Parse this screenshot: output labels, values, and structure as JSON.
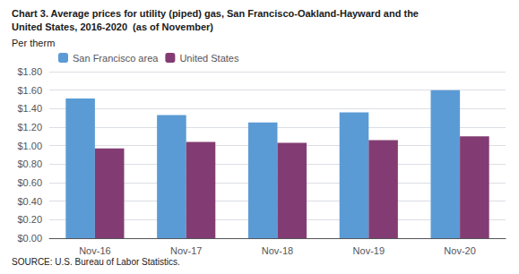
{
  "chart_data": {
    "type": "bar",
    "title": "Chart 3. Average prices for utility (piped) gas, San Francisco-Oakland-Hayward and the",
    "subtitle": "United States, 2016-2020  (as of November)",
    "y_label": "Per therm",
    "annotations": [
      "SOURCE: U.S. Bureau of Labor Statistics."
    ],
    "categories": [
      "Nov-16",
      "Nov-17",
      "Nov-18",
      "Nov-19",
      "Nov-20"
    ],
    "series": [
      {
        "name": "San Francisco area",
        "color": "#5B9BD5",
        "values": [
          1.51,
          1.33,
          1.25,
          1.36,
          1.6
        ]
      },
      {
        "name": "United States",
        "color": "#833C73",
        "values": [
          0.97,
          1.04,
          1.03,
          1.06,
          1.1
        ]
      }
    ],
    "ylim": [
      0.0,
      1.8
    ],
    "yticks": [
      {
        "value": 0.0,
        "label": "$0.00"
      },
      {
        "value": 0.2,
        "label": "$0.20"
      },
      {
        "value": 0.4,
        "label": "$0.40"
      },
      {
        "value": 0.6,
        "label": "$0.60"
      },
      {
        "value": 0.8,
        "label": "$0.80"
      },
      {
        "value": 1.0,
        "label": "$1.00"
      },
      {
        "value": 1.2,
        "label": "$1.20"
      },
      {
        "value": 1.4,
        "label": "$1.40"
      },
      {
        "value": 1.6,
        "label": "$1.60"
      },
      {
        "value": 1.8,
        "label": "$1.80"
      }
    ],
    "grid": true,
    "legend": "upper left"
  }
}
